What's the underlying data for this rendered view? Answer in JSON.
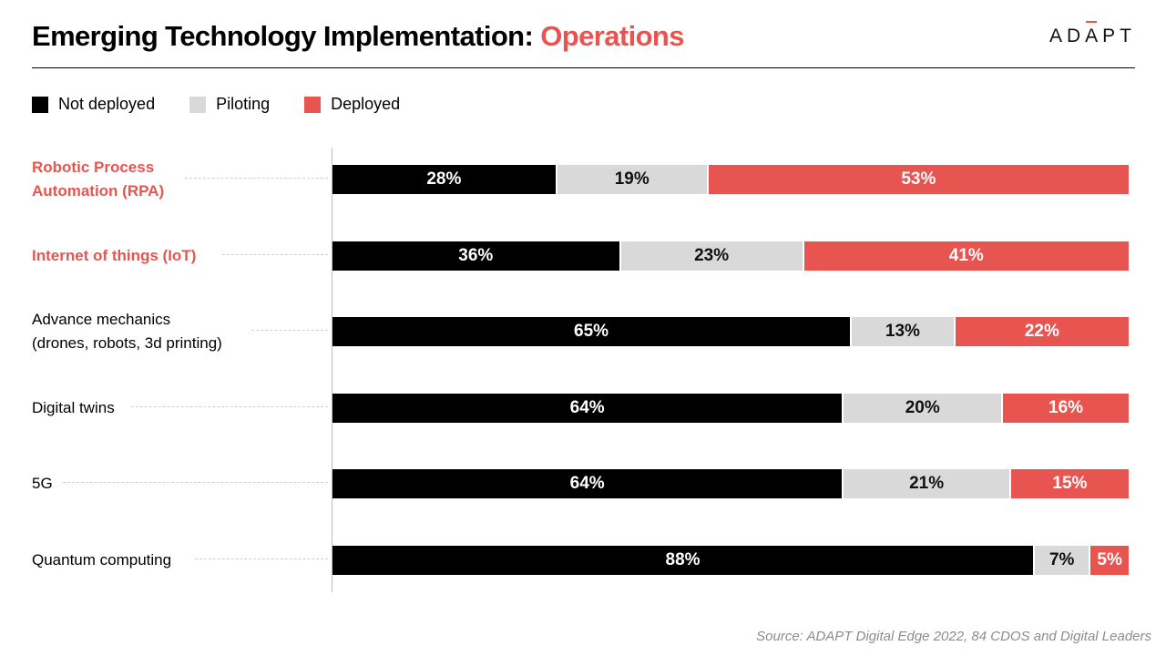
{
  "header": {
    "title_main": "Emerging Technology Implementation:",
    "title_accent": "Operations",
    "logo_pre": "AD",
    "logo_mark": "A",
    "logo_post": "PT"
  },
  "colors": {
    "not_deployed": "#000000",
    "piloting": "#d9d9d9",
    "deployed": "#e85550",
    "accent": "#e85550"
  },
  "legend": [
    {
      "label": "Not deployed",
      "color": "#000000"
    },
    {
      "label": "Piloting",
      "color": "#d9d9d9"
    },
    {
      "label": "Deployed",
      "color": "#e85550"
    }
  ],
  "chart_data": {
    "type": "bar",
    "orientation": "horizontal",
    "stacked": true,
    "normalized_to": 100,
    "categories": [
      "Robotic Process Automation (RPA)",
      "Internet of things (IoT)",
      "Advance mechanics (drones, robots, 3d printing)",
      "Digital twins",
      "5G",
      "Quantum computing"
    ],
    "category_lines": [
      [
        "Robotic Process",
        "Automation (RPA)"
      ],
      [
        "Internet of things (IoT)"
      ],
      [
        "Advance mechanics",
        "(drones, robots, 3d printing)"
      ],
      [
        "Digital twins"
      ],
      [
        "5G"
      ],
      [
        "Quantum computing"
      ]
    ],
    "highlighted_categories": [
      0,
      1
    ],
    "series": [
      {
        "name": "Not deployed",
        "values": [
          28,
          36,
          65,
          64,
          64,
          88
        ]
      },
      {
        "name": "Piloting",
        "values": [
          19,
          23,
          13,
          20,
          21,
          7
        ]
      },
      {
        "name": "Deployed",
        "values": [
          53,
          41,
          22,
          16,
          15,
          5
        ]
      }
    ],
    "value_suffix": "%",
    "grid": false,
    "legend_position": "top-left"
  },
  "footer": {
    "source": "Source: ADAPT Digital Edge 2022, 84 CDOS and Digital Leaders"
  }
}
